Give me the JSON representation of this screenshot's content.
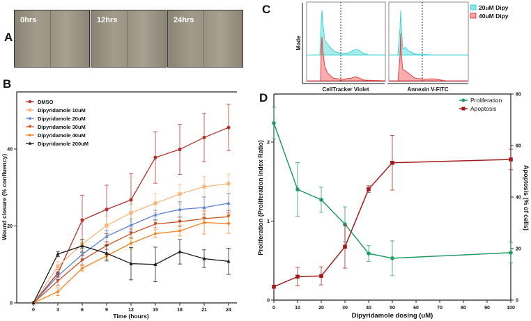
{
  "panels": {
    "a": "A",
    "b": "B",
    "c": "C",
    "d": "D"
  },
  "micrographs": [
    "0hrs",
    "12hrs",
    "24hrs"
  ],
  "flow": {
    "ylabel": "Mode",
    "xlabels": [
      "CellTracker Violet",
      "Annexin V-FITC"
    ],
    "legend": [
      {
        "name": "20uM Dipy",
        "color": "#3fd6d8"
      },
      {
        "name": "40uM Dipy",
        "color": "#f26b6b"
      }
    ]
  },
  "chart_data": [
    {
      "type": "line",
      "title": "",
      "xlabel": "Time (hours)",
      "ylabel": "Wound closure  (% confluency)",
      "xlim": [
        0,
        24
      ],
      "ylim": [
        0,
        50
      ],
      "x": [
        0,
        3,
        6,
        9,
        12,
        15,
        18,
        21,
        24
      ],
      "xticks": [
        "0",
        "3",
        "6",
        "9",
        "12",
        "15",
        "18",
        "21",
        "24"
      ],
      "yticks": [
        "0",
        "20",
        "40"
      ],
      "legend_position": "top-left",
      "series": [
        {
          "name": "DMSO",
          "color": "#b5302a",
          "marker": "circle",
          "values": [
            0,
            7.7,
            21.5,
            24.3,
            26.8,
            37.8,
            39.9,
            43,
            45.6
          ],
          "err": [
            0,
            1,
            6.5,
            6.3,
            6.8,
            6.7,
            6.5,
            6.3,
            6
          ]
        },
        {
          "name": "Dipyridamole 10uM",
          "color": "#f5b87a",
          "marker": "square",
          "values": [
            0,
            9.5,
            15.3,
            20.1,
            23.4,
            25.9,
            28.3,
            30.2,
            31
          ],
          "err": [
            0,
            1.2,
            1.2,
            2.3,
            2.2,
            2.5,
            2.6,
            2.6,
            2.5
          ]
        },
        {
          "name": "Dipyridamole 20uM",
          "color": "#5b82d0",
          "marker": "triangle",
          "values": [
            0,
            7,
            12.6,
            17.3,
            20.2,
            22.9,
            24.3,
            24.8,
            25.9
          ],
          "err": [
            0,
            1,
            1.6,
            1.5,
            1.6,
            1.2,
            2,
            2.7,
            2.5
          ]
        },
        {
          "name": "Dipyridamole 30uM",
          "color": "#c8501e",
          "marker": "down-triangle",
          "values": [
            0,
            5.7,
            11.1,
            14.9,
            18,
            20.5,
            21.1,
            21.9,
            22.4
          ],
          "err": [
            0,
            1.3,
            1.2,
            1,
            1.2,
            1,
            1.2,
            1.2,
            1.6
          ]
        },
        {
          "name": "Dipyridamole 40uM",
          "color": "#f5801e",
          "marker": "diamond",
          "values": [
            0,
            2.9,
            9,
            12.2,
            15.5,
            18,
            18.7,
            20.9,
            20.6
          ],
          "err": [
            0,
            1,
            0.7,
            0.8,
            1.5,
            1,
            1.3,
            3,
            2.5
          ]
        },
        {
          "name": "Dipyridamole 200uM",
          "color": "#1a1a1a",
          "marker": "triangle",
          "values": [
            0,
            12.7,
            14.8,
            12.9,
            10.2,
            10,
            13.3,
            11.5,
            10.8
          ],
          "err": [
            0,
            0.7,
            1.6,
            2,
            4.2,
            4.5,
            3.2,
            2.3,
            3.4
          ]
        }
      ]
    },
    {
      "type": "line",
      "title": "",
      "xlabel": "Dipyridamole dosing (uM)",
      "ylabel": "Proliferation (Proliferation Index Ratio)",
      "y2label": "Apoptosis (% of cells)",
      "xlim": [
        0,
        100
      ],
      "ylim": [
        0,
        2.6
      ],
      "y2lim": [
        0,
        80
      ],
      "xticks": [
        "0",
        "10",
        "20",
        "30",
        "40",
        "50",
        "60",
        "70",
        "80",
        "90",
        "100"
      ],
      "yticks": [
        "0",
        "1",
        "2"
      ],
      "y2ticks": [
        "0",
        "20",
        "40",
        "60",
        "80"
      ],
      "legend_position": "top-right",
      "x": [
        0,
        10,
        20,
        30,
        40,
        50,
        100
      ],
      "series": [
        {
          "name": "Proliferation",
          "axis": "left",
          "color": "#1f9e62",
          "marker": "circle",
          "values": [
            2.24,
            1.4,
            1.27,
            0.96,
            0.59,
            0.53,
            0.6
          ],
          "err": [
            0.2,
            0.34,
            0.16,
            0.22,
            0.1,
            0.22,
            0.13
          ]
        },
        {
          "name": "Apoptosis",
          "axis": "right",
          "color": "#a31c1c",
          "marker": "square",
          "values": [
            5.2,
            9.1,
            9.4,
            20.7,
            43.1,
            53.3,
            54.6
          ],
          "err": [
            0,
            3.6,
            3.5,
            8.3,
            1.3,
            10.6,
            4
          ]
        }
      ]
    }
  ]
}
